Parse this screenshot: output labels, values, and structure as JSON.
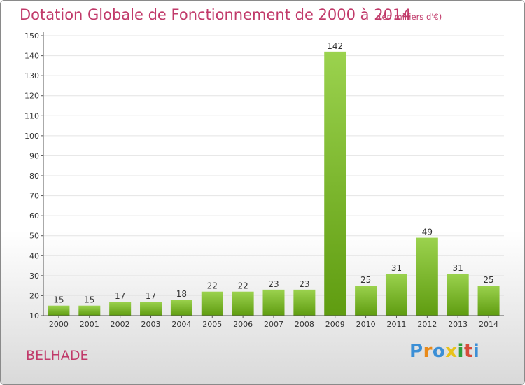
{
  "header": {
    "title": "Dotation Globale de Fonctionnement de 2000 à 2014",
    "unit_note": "(en milliers d'€)"
  },
  "footer": {
    "commune": "BELHADE",
    "brand": [
      "P",
      "r",
      "o",
      "x",
      "i",
      "t",
      "i"
    ]
  },
  "colors": {
    "title": "#c13a6a",
    "bar_light": "#9bd24e",
    "bar_dark": "#5f9c10",
    "grid": "#e4e4e4",
    "axis": "#555555",
    "brand_letters": [
      "#3b8fd6",
      "#e98a1a",
      "#3b8fd6",
      "#e8c21a",
      "#2f9e3a",
      "#d64b3a",
      "#3b8fd6"
    ]
  },
  "chart_data": {
    "type": "bar",
    "title": "Dotation Globale de Fonctionnement de 2000 à 2014",
    "subtitle": "(en milliers d'€)",
    "xlabel": "",
    "ylabel": "",
    "categories": [
      "2000",
      "2001",
      "2002",
      "2003",
      "2004",
      "2005",
      "2006",
      "2007",
      "2008",
      "2009",
      "2010",
      "2011",
      "2012",
      "2013",
      "2014"
    ],
    "values": [
      15,
      15,
      17,
      17,
      18,
      22,
      22,
      23,
      23,
      142,
      25,
      31,
      49,
      31,
      25
    ],
    "ylim": [
      10,
      150
    ],
    "yticks": [
      10,
      20,
      30,
      40,
      50,
      60,
      70,
      80,
      90,
      100,
      110,
      120,
      130,
      140,
      150
    ],
    "grid": true,
    "legend": "none"
  }
}
